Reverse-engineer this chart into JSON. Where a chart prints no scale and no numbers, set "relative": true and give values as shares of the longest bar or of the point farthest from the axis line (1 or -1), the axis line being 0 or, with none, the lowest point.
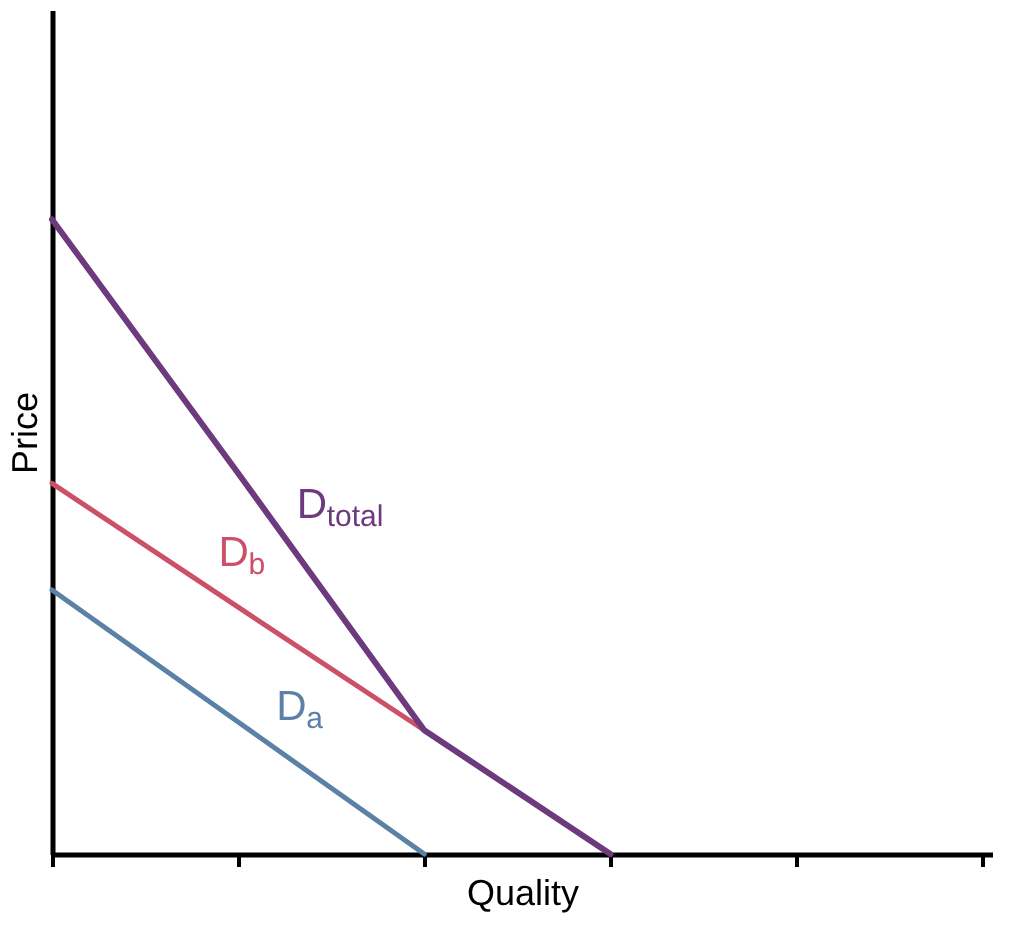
{
  "chart_data": {
    "type": "line",
    "relative": true,
    "xlabel": "Quality",
    "ylabel": "Price",
    "categories": [
      null,
      null,
      null,
      null,
      null,
      null
    ],
    "marker": "none",
    "line_style": "solid",
    "series": [
      {
        "name": "D$_{a}$",
        "color": "#5b82a6",
        "values": [
          0.416,
          0.208,
          0,
          null,
          null,
          null
        ]
      },
      {
        "name": "D$_{b}$",
        "color": "#cc5067",
        "values": [
          0.584,
          0.389,
          0.195,
          0,
          null,
          null
        ]
      },
      {
        "name": "D$_{total}$",
        "color": "#6e3a7e",
        "values": [
          1,
          0.6,
          0.195,
          0,
          null,
          null
        ]
      }
    ]
  }
}
